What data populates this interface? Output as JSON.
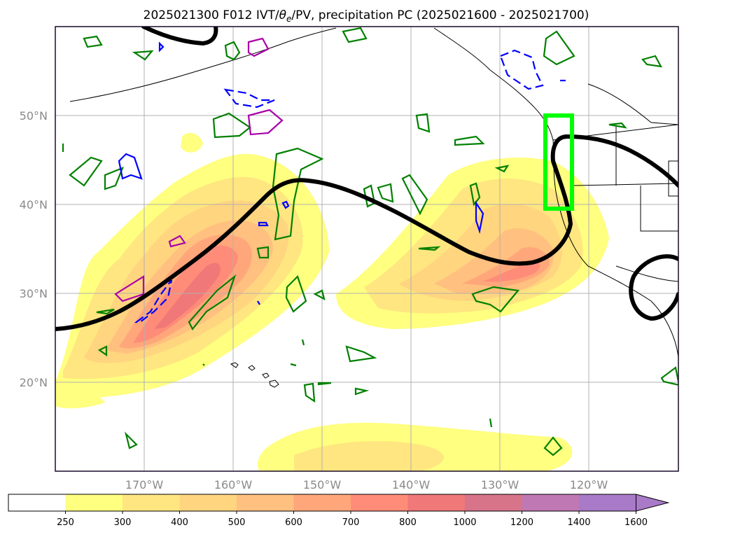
{
  "title_prefix": "2025021300 F012 IVT/",
  "title_theta": "θ",
  "title_theta_sub": "e",
  "title_suffix": "/PV, precipitation PC (2025021600 - 2025021700)",
  "map": {
    "projection": "PlateCarree",
    "lon_range": [
      -180,
      -110
    ],
    "lat_range": [
      10,
      60
    ],
    "grid": true,
    "lon_ticks": [
      "170°W",
      "160°W",
      "150°W",
      "140°W",
      "130°W",
      "120°W"
    ],
    "lat_ticks": [
      "20°N",
      "30°N",
      "40°N",
      "50°N"
    ],
    "highlight_box": {
      "color": "#00ff00",
      "lon_range": [
        -125,
        -122
      ],
      "lat_range": [
        39.5,
        50
      ]
    },
    "layers": [
      {
        "name": "IVT",
        "type": "filled contours",
        "units_scale": "colorbar"
      },
      {
        "name": "theta_e/PV contour",
        "color": "#000000",
        "style": "thick line"
      },
      {
        "name": "positive contours",
        "color": "#008000"
      },
      {
        "name": "negative dashed contours",
        "color": "#0000ff"
      },
      {
        "name": "magenta contours",
        "color": "#aa00aa"
      }
    ]
  },
  "colorbar": {
    "levels": [
      "250",
      "300",
      "400",
      "500",
      "600",
      "700",
      "800",
      "1000",
      "1200",
      "1400",
      "1600"
    ],
    "colors": [
      "#ffffff",
      "#ffff80",
      "#ffe680",
      "#ffd580",
      "#ffc080",
      "#ffa77a",
      "#ff8c78",
      "#f07878",
      "#d7748a",
      "#bf78b4",
      "#a87ac8"
    ],
    "extend": "max"
  }
}
